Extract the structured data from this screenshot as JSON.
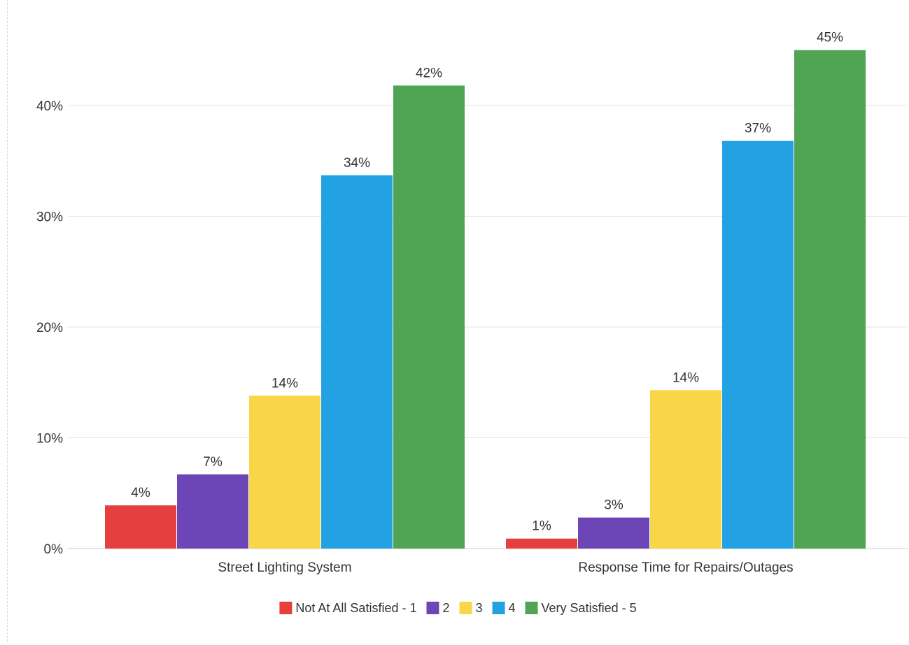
{
  "chart_data": {
    "type": "bar",
    "categories": [
      "Street Lighting System",
      "Response Time for Repairs/Outages"
    ],
    "series": [
      {
        "name": "Not At All Satisfied - 1",
        "color": "#e5403f",
        "values": [
          3.9,
          0.9
        ],
        "labels": [
          "4%",
          "1%"
        ]
      },
      {
        "name": "2",
        "color": "#6c46b7",
        "values": [
          6.7,
          2.8
        ],
        "labels": [
          "7%",
          "3%"
        ]
      },
      {
        "name": "3",
        "color": "#f9d548",
        "values": [
          13.8,
          14.3
        ],
        "labels": [
          "14%",
          "14%"
        ]
      },
      {
        "name": "4",
        "color": "#23a2e3",
        "values": [
          33.7,
          36.8
        ],
        "labels": [
          "34%",
          "37%"
        ]
      },
      {
        "name": "Very Satisfied - 5",
        "color": "#50a554",
        "values": [
          41.8,
          45.0
        ],
        "labels": [
          "42%",
          "45%"
        ]
      }
    ],
    "ylim": [
      0,
      47
    ],
    "yticks": [
      0,
      10,
      20,
      30,
      40
    ],
    "ytick_labels": [
      "0%",
      "10%",
      "20%",
      "30%",
      "40%"
    ],
    "grid": true,
    "legend_position": "bottom-center"
  }
}
